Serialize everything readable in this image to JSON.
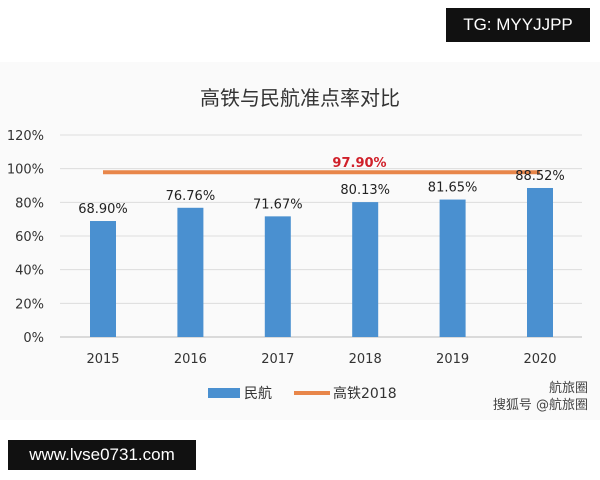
{
  "overlay": {
    "top_tag": "TG: MYYJJPP",
    "bottom_tag": "www.lvse0731.com",
    "watermark_line1": "航旅圈",
    "watermark_line2": "搜狐号 @航旅圈"
  },
  "chart_data": {
    "type": "bar",
    "title": "高铁与民航准点率对比",
    "categories": [
      "2015",
      "2016",
      "2017",
      "2018",
      "2019",
      "2020"
    ],
    "series": [
      {
        "name": "民航",
        "type": "bar",
        "color": "#4a90d0",
        "values": [
          68.9,
          76.76,
          71.67,
          80.13,
          81.65,
          88.52
        ],
        "labels": [
          "68.90%",
          "76.76%",
          "71.67%",
          "80.13%",
          "81.65%",
          "88.52%"
        ]
      },
      {
        "name": "高铁2018",
        "type": "line",
        "color": "#e8864a",
        "values": [
          97.9,
          97.9,
          97.9,
          97.9,
          97.9,
          97.9
        ],
        "label": "97.90%",
        "label_color": "#d0202a"
      }
    ],
    "yticks": [
      "0%",
      "20%",
      "40%",
      "60%",
      "80%",
      "100%",
      "120%"
    ],
    "ylim": [
      0,
      120
    ],
    "xlabel": "",
    "ylabel": "",
    "grid": true,
    "legend": "bottom"
  }
}
